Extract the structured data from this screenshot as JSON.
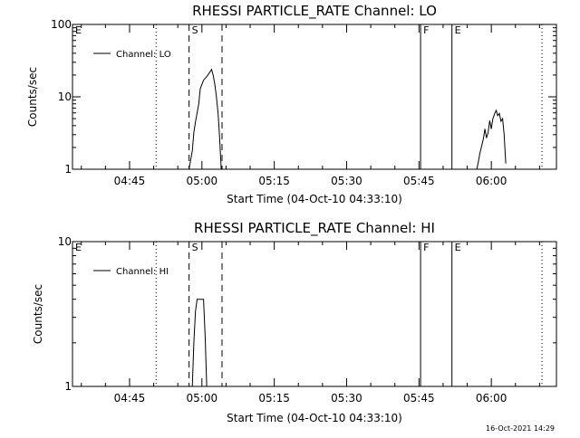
{
  "chart_data": [
    {
      "type": "line",
      "title": "RHESSI PARTICLE_RATE Channel: LO",
      "xlabel": "Start Time (04-Oct-10 04:33:10)",
      "ylabel": "Counts/sec",
      "xlim": [
        "04:33:10",
        "06:13:30"
      ],
      "ylim": [
        1,
        100
      ],
      "yscale": "log",
      "x_ticks": [
        "04:45",
        "05:00",
        "05:15",
        "05:30",
        "05:45",
        "06:00"
      ],
      "y_ticks": [
        "1",
        "10",
        "100"
      ],
      "legend": "top-left",
      "legend_entries": [
        "Channel: LO"
      ],
      "markers": [
        {
          "label": "E",
          "time": "04:33:10",
          "style": "none"
        },
        {
          "label": "",
          "time": "04:50:30",
          "style": "dotted"
        },
        {
          "label": "S",
          "time": "04:57:20",
          "style": "dashed"
        },
        {
          "label": "",
          "time": "05:04:10",
          "style": "dashed"
        },
        {
          "label": "F",
          "time": "05:45:20",
          "style": "solid"
        },
        {
          "label": "E",
          "time": "05:51:50",
          "style": "solid"
        },
        {
          "label": "",
          "time": "06:10:30",
          "style": "dotted"
        }
      ],
      "series": [
        {
          "name": "Channel: LO",
          "segments": [
            [
              [
                "04:57:20",
                1
              ],
              [
                "04:58:00",
                1.8
              ],
              [
                "04:58:20",
                3.2
              ],
              [
                "04:58:40",
                4.5
              ],
              [
                "04:59:20",
                8
              ],
              [
                "04:59:40",
                13
              ],
              [
                "05:00:20",
                17
              ],
              [
                "05:01:00",
                19
              ],
              [
                "05:01:40",
                22
              ],
              [
                "05:02:00",
                24
              ],
              [
                "05:02:20",
                20
              ],
              [
                "05:02:40",
                15
              ],
              [
                "05:03:00",
                10
              ],
              [
                "05:03:20",
                6
              ],
              [
                "05:03:40",
                2.8
              ],
              [
                "05:04:00",
                1
              ]
            ],
            [
              [
                "05:57:00",
                1
              ],
              [
                "05:57:20",
                1.3
              ],
              [
                "05:57:40",
                1.7
              ],
              [
                "05:58:00",
                2.1
              ],
              [
                "05:58:20",
                2.6
              ],
              [
                "05:58:40",
                3.6
              ],
              [
                "05:59:00",
                2.7
              ],
              [
                "05:59:20",
                3.2
              ],
              [
                "05:59:40",
                4.7
              ],
              [
                "06:00:00",
                3.6
              ],
              [
                "06:00:20",
                5.0
              ],
              [
                "06:00:40",
                5.8
              ],
              [
                "06:01:00",
                6.5
              ],
              [
                "06:01:20",
                5.5
              ],
              [
                "06:01:40",
                5.9
              ],
              [
                "06:02:00",
                4.6
              ],
              [
                "06:02:20",
                5.0
              ],
              [
                "06:02:40",
                3.0
              ],
              [
                "06:03:00",
                1.2
              ]
            ]
          ]
        }
      ]
    },
    {
      "type": "line",
      "title": "RHESSI PARTICLE_RATE Channel: HI",
      "xlabel": "Start Time (04-Oct-10 04:33:10)",
      "ylabel": "Counts/sec",
      "xlim": [
        "04:33:10",
        "06:13:30"
      ],
      "ylim": [
        1,
        10
      ],
      "yscale": "log",
      "x_ticks": [
        "04:45",
        "05:00",
        "05:15",
        "05:30",
        "05:45",
        "06:00"
      ],
      "y_ticks": [
        "1",
        "10"
      ],
      "legend": "top-left",
      "legend_entries": [
        "Channel: HI"
      ],
      "markers": [
        {
          "label": "E",
          "time": "04:33:10",
          "style": "none"
        },
        {
          "label": "",
          "time": "04:50:30",
          "style": "dotted"
        },
        {
          "label": "S",
          "time": "04:57:20",
          "style": "dashed"
        },
        {
          "label": "",
          "time": "05:04:10",
          "style": "dashed"
        },
        {
          "label": "F",
          "time": "05:45:20",
          "style": "solid"
        },
        {
          "label": "E",
          "time": "05:51:50",
          "style": "solid"
        },
        {
          "label": "",
          "time": "06:10:30",
          "style": "dotted"
        }
      ],
      "series": [
        {
          "name": "Channel: HI",
          "segments": [
            [
              [
                "04:58:00",
                1
              ],
              [
                "04:58:20",
                2.0
              ],
              [
                "04:58:40",
                3.3
              ],
              [
                "04:59:00",
                4
              ],
              [
                "04:59:40",
                4
              ],
              [
                "05:00:20",
                4
              ],
              [
                "05:00:40",
                2.2
              ],
              [
                "05:01:00",
                1
              ]
            ]
          ]
        }
      ]
    }
  ],
  "footer": {
    "timestamp": "16-Oct-2021 14:29"
  }
}
